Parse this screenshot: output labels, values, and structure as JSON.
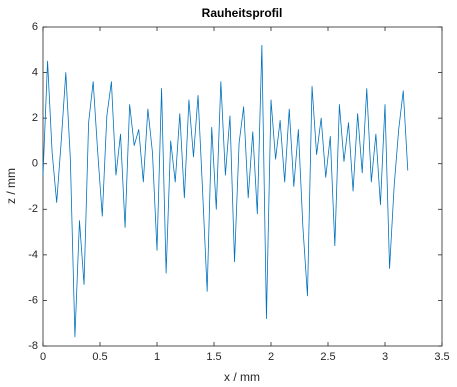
{
  "chart_data": {
    "type": "line",
    "title": "Rauheitsprofil",
    "x_label": "x / mm",
    "y_label": "z / mm",
    "x": [
      0,
      0.04,
      0.08,
      0.12,
      0.16,
      0.2,
      0.24,
      0.28,
      0.32,
      0.36,
      0.4,
      0.44,
      0.48,
      0.52,
      0.56,
      0.6,
      0.64,
      0.68,
      0.72,
      0.76,
      0.8,
      0.84,
      0.88,
      0.92,
      0.96,
      1,
      1.04,
      1.08,
      1.12,
      1.16,
      1.2,
      1.24,
      1.28,
      1.32,
      1.36,
      1.4,
      1.44,
      1.48,
      1.52,
      1.56,
      1.6,
      1.64,
      1.68,
      1.72,
      1.76,
      1.8,
      1.84,
      1.88,
      1.92,
      1.96,
      2,
      2.04,
      2.08,
      2.12,
      2.16,
      2.2,
      2.24,
      2.28,
      2.32,
      2.36,
      2.4,
      2.44,
      2.48,
      2.52,
      2.56,
      2.6,
      2.64,
      2.68,
      2.72,
      2.76,
      2.8,
      2.84,
      2.88,
      2.92,
      2.96,
      3,
      3.04,
      3.08,
      3.12,
      3.16,
      3.2
    ],
    "series": [
      {
        "color": "#0072bd",
        "values": [
          -0.5,
          4.5,
          0.5,
          -1.7,
          1.0,
          4.0,
          0.2,
          -7.6,
          -2.5,
          -5.3,
          1.8,
          3.6,
          0.5,
          -2.3,
          2.1,
          3.6,
          -0.5,
          1.3,
          -2.8,
          2.6,
          0.8,
          1.5,
          -0.8,
          2.4,
          0.5,
          -3.8,
          3.3,
          -4.8,
          1.0,
          -0.8,
          2.2,
          -1.5,
          2.8,
          0.3,
          3.0,
          -1.2,
          -5.6,
          1.6,
          -2.0,
          3.6,
          -0.5,
          2.1,
          -4.3,
          0.9,
          2.5,
          -1.5,
          1.4,
          -2.2,
          5.2,
          -6.8,
          2.8,
          0.2,
          1.9,
          -0.8,
          2.4,
          -1.0,
          1.5,
          -2.8,
          -5.8,
          3.4,
          0.4,
          2.0,
          -0.6,
          1.2,
          -3.6,
          2.6,
          0.1,
          1.8,
          -1.2,
          2.2,
          -0.4,
          3.3,
          -0.8,
          1.3,
          -1.8,
          2.6,
          -4.6,
          -1.0,
          1.5,
          3.2,
          -0.3
        ]
      }
    ],
    "xlim": [
      0,
      3.5
    ],
    "xticks": [
      0,
      0.5,
      1,
      1.5,
      2,
      2.5,
      3,
      3.5
    ],
    "ylim": [
      -8,
      6
    ],
    "yticks": [
      -8,
      -6,
      -4,
      -2,
      0,
      2,
      4,
      6
    ]
  }
}
